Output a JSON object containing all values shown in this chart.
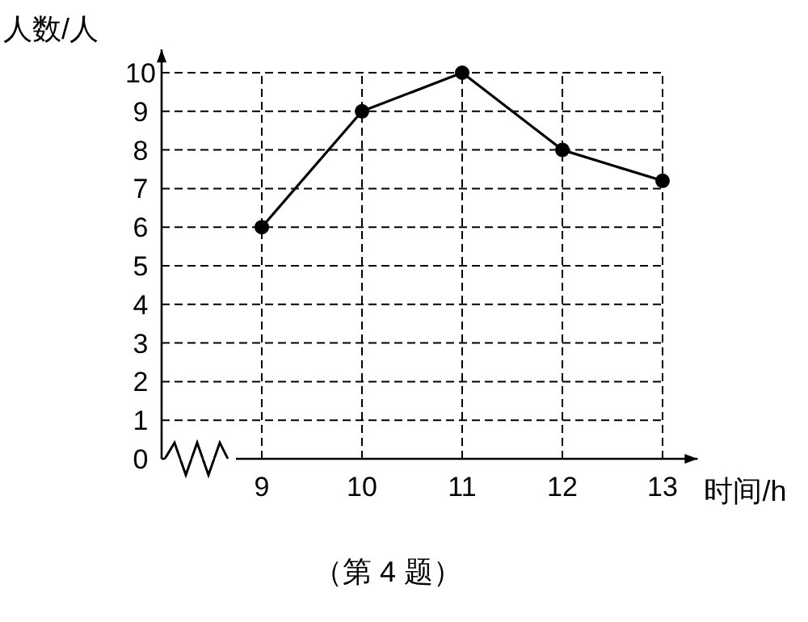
{
  "chart_data": {
    "type": "line",
    "xlabel": "时间/h",
    "ylabel": "人数/人",
    "x": [
      9,
      10,
      11,
      12,
      13
    ],
    "values": [
      6,
      9,
      10,
      8,
      7.2
    ],
    "color": "#000000",
    "xlim": [
      8,
      13.35
    ],
    "ylim": [
      0,
      10.6
    ],
    "xticks": [
      9,
      10,
      11,
      12,
      13
    ],
    "yticks": [
      0,
      1,
      2,
      3,
      4,
      5,
      6,
      7,
      8,
      9,
      10
    ],
    "grid": true,
    "marker": "circle",
    "line_style": "solid",
    "annotations": [
      "（第 4 题）"
    ]
  }
}
